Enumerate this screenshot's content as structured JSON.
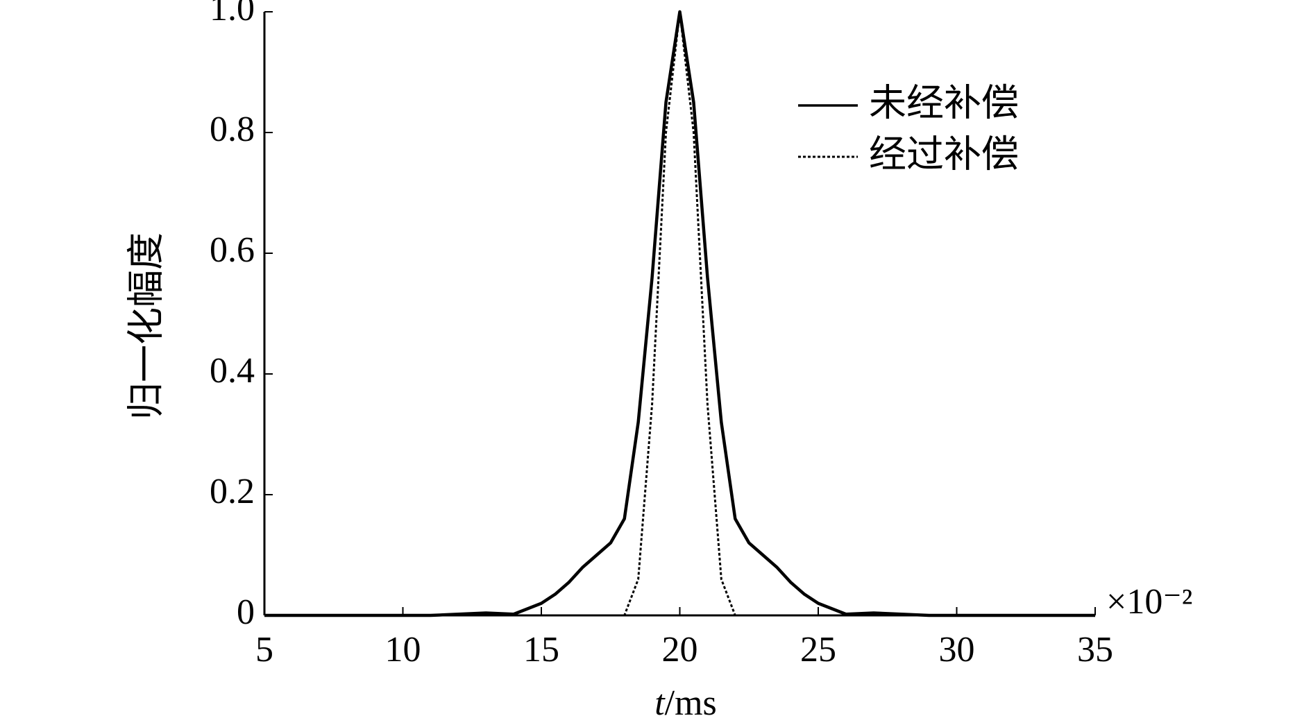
{
  "chart_data": {
    "type": "line",
    "x_label": "t/ms",
    "y_label": "归一化幅度",
    "x_scale_note": "×10⁻²",
    "x": [
      5,
      8,
      11,
      12,
      13,
      14,
      15,
      15.5,
      16,
      16.5,
      17,
      17.5,
      18,
      18.5,
      19,
      19.5,
      20,
      20.5,
      21,
      21.5,
      22,
      22.5,
      23,
      23.5,
      24,
      24.5,
      25,
      26,
      27,
      28,
      29,
      32,
      35
    ],
    "series": [
      {
        "name": "未经补偿",
        "color": "#000000",
        "dash": "solid",
        "values": [
          0,
          0,
          0,
          0.002,
          0.004,
          0.002,
          0.02,
          0.035,
          0.055,
          0.08,
          0.1,
          0.12,
          0.16,
          0.32,
          0.56,
          0.85,
          1.0,
          0.85,
          0.56,
          0.32,
          0.16,
          0.12,
          0.1,
          0.08,
          0.055,
          0.035,
          0.02,
          0.002,
          0.004,
          0.002,
          0,
          0,
          0
        ]
      },
      {
        "name": "经过补偿",
        "color": "#000000",
        "dash": "dotted",
        "values": [
          0,
          0,
          0,
          0,
          0,
          0,
          0,
          0,
          0,
          0,
          0,
          0,
          0,
          0.06,
          0.35,
          0.8,
          1.0,
          0.8,
          0.35,
          0.06,
          0,
          0,
          0,
          0,
          0,
          0,
          0,
          0,
          0,
          0,
          0,
          0,
          0
        ]
      }
    ],
    "xlim": [
      5,
      35
    ],
    "xticks": [
      5,
      10,
      15,
      20,
      25,
      30,
      35
    ],
    "ylim": [
      0,
      1
    ],
    "yticks": [
      0,
      0.2,
      0.4,
      0.6,
      0.8,
      {
        "value": 1,
        "label": "1.0"
      }
    ],
    "grid": false,
    "legend": "upper right"
  }
}
